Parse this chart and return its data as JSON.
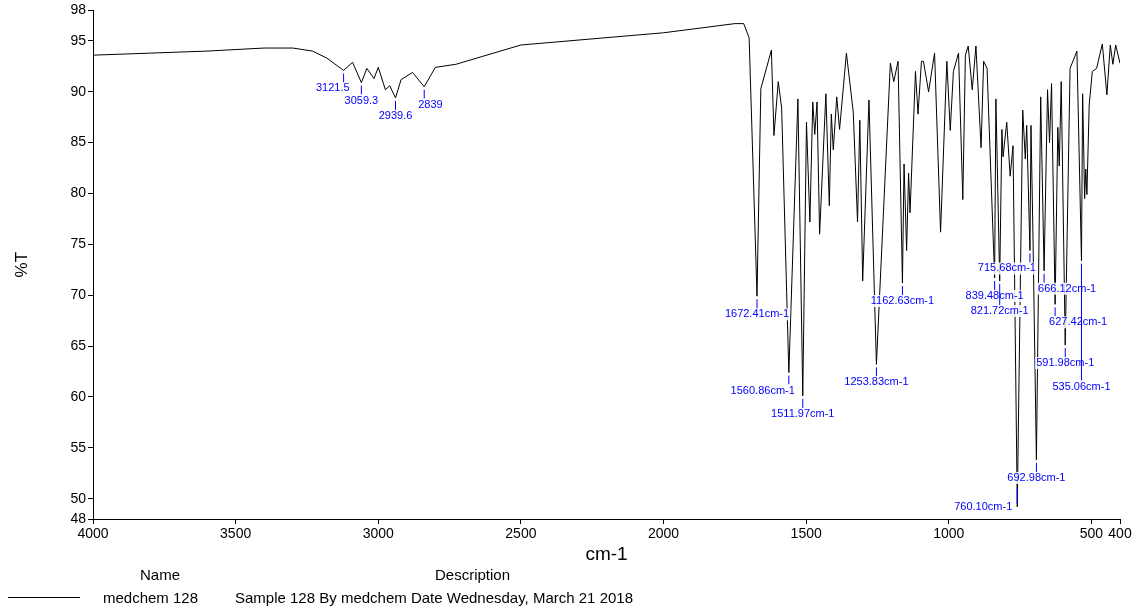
{
  "chart_data": {
    "type": "line",
    "xlabel": "cm-1",
    "ylabel": "%T",
    "legend": "bottom",
    "grid": false,
    "marker": "none",
    "line_style": "solid",
    "xlim": [
      4000,
      400
    ],
    "xticks": [
      4000,
      3500,
      3000,
      2500,
      2000,
      1500,
      1000,
      500,
      400
    ],
    "ylim": [
      48,
      98
    ],
    "yticks": [
      48,
      50,
      55,
      60,
      65,
      70,
      75,
      80,
      85,
      90,
      95,
      98
    ],
    "series": [
      {
        "name": "medchem 128",
        "color": "#000000",
        "x": [
          4000,
          3600,
          3400,
          3300,
          3230,
          3180,
          3121.5,
          3090,
          3059.3,
          3040,
          3015,
          3000,
          2975,
          2960,
          2939.6,
          2920,
          2880,
          2839,
          2800,
          2728,
          2500,
          2000,
          1750,
          1719,
          1700,
          1672.41,
          1659,
          1622,
          1613,
          1598,
          1586,
          1560.86,
          1529,
          1511.97,
          1499,
          1487,
          1477,
          1470,
          1462,
          1453,
          1431,
          1419,
          1412,
          1405,
          1393,
          1383,
          1359,
          1335,
          1320,
          1312,
          1302,
          1280,
          1253.83,
          1205,
          1193,
          1178,
          1162.63,
          1157,
          1148,
          1141,
          1136,
          1117,
          1108,
          1096,
          1089,
          1071,
          1050,
          1029,
          1007,
          995,
          984,
          966,
          951,
          942,
          932,
          918,
          905,
          887,
          878,
          866,
          839.48,
          835,
          821.72,
          814,
          810,
          797,
          785,
          775,
          760.1,
          741,
          732,
          727,
          715.68,
          712,
          705,
          692.98,
          678,
          666.12,
          654,
          647,
          640,
          627.42,
          618,
          613,
          606,
          591.98,
          575,
          551,
          535.06,
          531,
          524,
          520,
          516,
          508,
          497,
          482,
          462,
          446,
          434,
          425,
          415,
          400
        ],
        "values": [
          93.6,
          94.0,
          94.3,
          94.3,
          94.0,
          93.3,
          92.1,
          92.9,
          90.9,
          92.3,
          91.3,
          92.4,
          90.2,
          90.6,
          89.4,
          91.2,
          91.9,
          90.5,
          92.4,
          92.7,
          94.6,
          95.8,
          96.7,
          96.7,
          95.3,
          69.9,
          90.3,
          94.1,
          85.7,
          91.0,
          88.4,
          62.4,
          89.3,
          60.1,
          87.0,
          77.2,
          89.0,
          85.8,
          89.0,
          76.0,
          89.8,
          78.8,
          87.8,
          84.3,
          89.5,
          86.3,
          93.8,
          88.0,
          77.2,
          87.2,
          71.4,
          89.2,
          63.2,
          92.8,
          91.0,
          93.0,
          71.2,
          82.9,
          74.4,
          82.0,
          78.1,
          92.0,
          87.8,
          93.0,
          93.0,
          90.0,
          93.8,
          76.2,
          93.0,
          86.2,
          92.0,
          93.8,
          79.4,
          93.6,
          94.5,
          90.2,
          94.5,
          84.5,
          93.0,
          92.3,
          71.7,
          89.3,
          71.4,
          86.3,
          83.6,
          87.0,
          81.7,
          84.7,
          49.2,
          88.2,
          83.4,
          86.7,
          74.4,
          86.7,
          75.7,
          53.8,
          89.5,
          72.4,
          90.2,
          85.0,
          90.8,
          69.1,
          86.5,
          82.7,
          91.0,
          65.1,
          92.3,
          94.0,
          73.4,
          89.8,
          79.5,
          82.4,
          79.9,
          88.7,
          92.0,
          92.3,
          94.7,
          89.7,
          94.6,
          92.7,
          94.6,
          92.8
        ]
      }
    ],
    "annotations": [
      {
        "text": "3121.5",
        "x": 3121.5,
        "y": 92.1
      },
      {
        "text": "3059.3",
        "x": 3059.3,
        "y": 90.9
      },
      {
        "text": "2939.6",
        "x": 2939.6,
        "y": 89.4
      },
      {
        "text": "2839",
        "x": 2839,
        "y": 90.5
      },
      {
        "text": "1672.41cm-1",
        "x": 1672.41,
        "y": 69.9
      },
      {
        "text": "1560.86cm-1",
        "x": 1560.86,
        "y": 62.4
      },
      {
        "text": "1511.97cm-1",
        "x": 1511.97,
        "y": 60.1
      },
      {
        "text": "1253.83cm-1",
        "x": 1253.83,
        "y": 63.2
      },
      {
        "text": "1162.63cm-1",
        "x": 1162.63,
        "y": 71.2
      },
      {
        "text": "839.48cm-1",
        "x": 839.48,
        "y": 71.7
      },
      {
        "text": "821.72cm-1",
        "x": 821.72,
        "y": 71.4
      },
      {
        "text": "760.10cm-1",
        "x": 760.1,
        "y": 49.2
      },
      {
        "text": "715.68cm-1",
        "x": 715.68,
        "y": 74.4
      },
      {
        "text": "692.98cm-1",
        "x": 692.98,
        "y": 53.8
      },
      {
        "text": "666.12cm-1",
        "x": 666.12,
        "y": 72.4
      },
      {
        "text": "627.42cm-1",
        "x": 627.42,
        "y": 69.1
      },
      {
        "text": "591.98cm-1",
        "x": 591.98,
        "y": 65.1
      },
      {
        "text": "535.06cm-1",
        "x": 535.06,
        "y": 73.4
      },
      "Name",
      "Description",
      "Sample 128 By medchem Date Wednesday, March 21 2018"
    ]
  }
}
